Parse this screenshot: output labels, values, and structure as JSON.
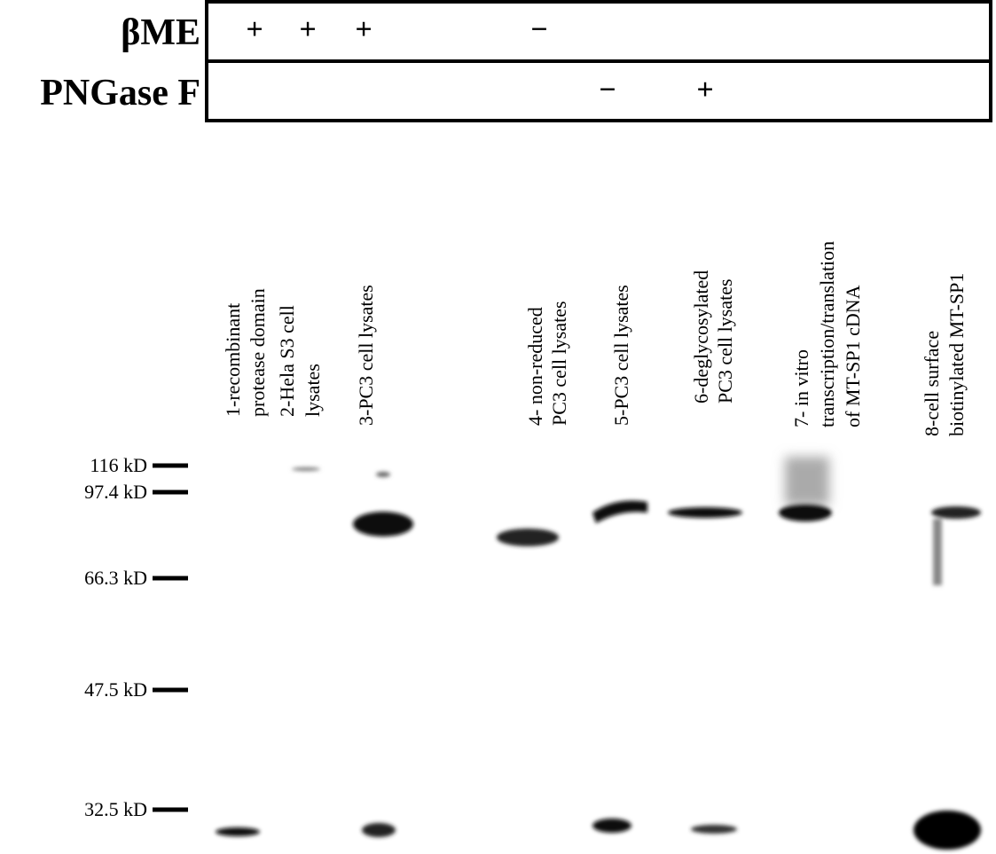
{
  "header": {
    "rows": [
      {
        "label": "βME",
        "marks": [
          "+",
          "+",
          "+",
          "−"
        ]
      },
      {
        "label": "PNGase F",
        "marks": [
          "−",
          "+"
        ]
      }
    ]
  },
  "lanes": [
    {
      "lines": [
        "1-recombinant",
        "protease domain"
      ]
    },
    {
      "lines": [
        "2-Hela S3 cell",
        "lysates"
      ]
    },
    {
      "lines": [
        "3-PC3 cell lysates"
      ]
    },
    {
      "lines": [
        "4- non-reduced",
        "PC3 cell lysates"
      ]
    },
    {
      "lines": [
        "5-PC3 cell lysates"
      ]
    },
    {
      "lines": [
        "6-deglycosylated",
        "PC3 cell lysates"
      ]
    },
    {
      "lines": [
        "7- in vitro",
        "transcription/translation",
        "of MT-SP1 cDNA"
      ]
    },
    {
      "lines": [
        "8-cell surface",
        "biotinylated MT-SP1"
      ]
    }
  ],
  "markers": [
    "116 kD",
    "97.4 kD",
    "66.3 kD",
    "47.5 kD",
    "32.5 kD"
  ]
}
